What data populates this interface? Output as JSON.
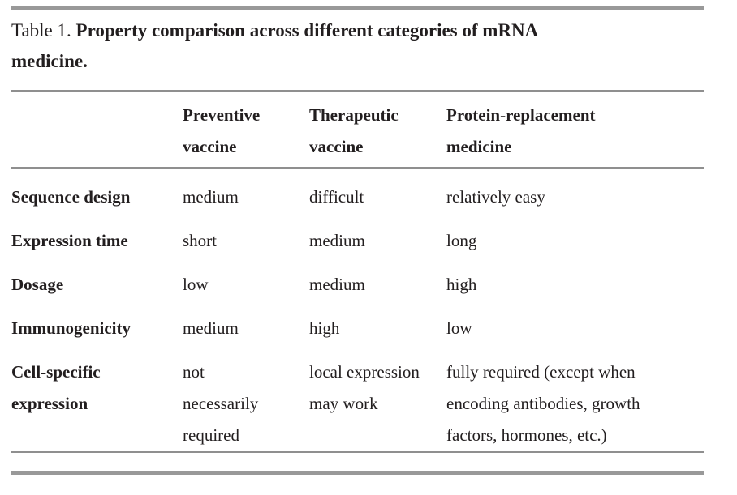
{
  "title": {
    "label": "Table 1.",
    "line1": "Property comparison across different categories of mRNA",
    "line2": "medicine."
  },
  "table": {
    "columns": [
      "",
      "Preventive\nvaccine",
      "Therapeutic\nvaccine",
      "Protein-replacement\nmedicine"
    ],
    "rows": [
      {
        "label": "Sequence design",
        "cells": [
          "medium",
          "difficult",
          "relatively easy"
        ]
      },
      {
        "label": "Expression time",
        "cells": [
          "short",
          "medium",
          "long"
        ]
      },
      {
        "label": "Dosage",
        "cells": [
          "low",
          "medium",
          "high"
        ]
      },
      {
        "label": "Immunogenicity",
        "cells": [
          "medium",
          "high",
          "low"
        ]
      },
      {
        "label": "Cell-specific\nexpression",
        "cells": [
          "not\nnecessarily\nrequired",
          "local expression\nmay work",
          "fully required (except when\nencoding antibodies, growth\nfactors, hormones, etc.)"
        ]
      }
    ]
  },
  "colors": {
    "text": "#221e1f",
    "rule_gray": "#8f8f8f",
    "bar_gray": "#999999",
    "background": "#ffffff"
  }
}
